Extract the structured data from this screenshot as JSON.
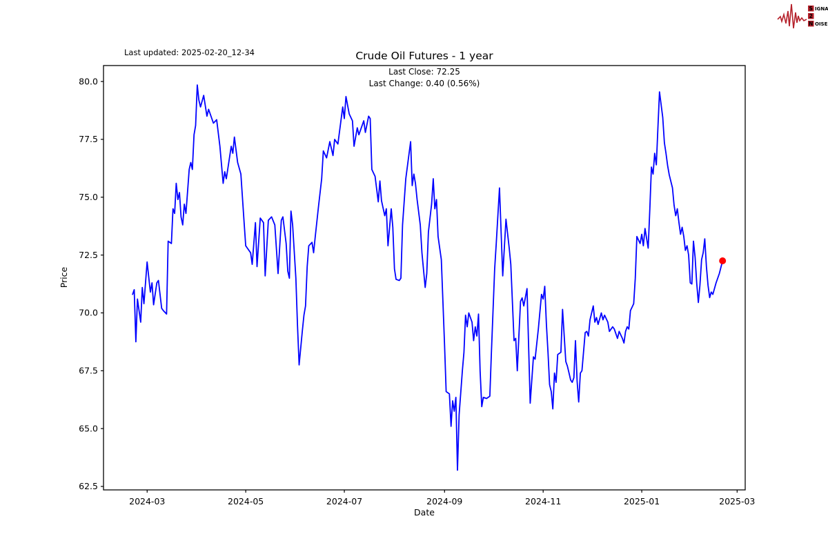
{
  "header": {
    "last_updated": "Last updated: 2025-02-20_12-34",
    "title": "Crude Oil Futures - 1 year",
    "subtitle_line1": "Last Close: 72.25",
    "subtitle_line2": "Last Change: 0.40 (0.56%)"
  },
  "logo": {
    "word1": "SIGNAL",
    "word2": "2",
    "word3": "NOISE",
    "accent_color": "#b5202a",
    "text_color": "#3b3b3b"
  },
  "chart_data": {
    "type": "line",
    "title": "Crude Oil Futures - 1 year",
    "xlabel": "Date",
    "ylabel": "Price",
    "last_close": 72.25,
    "last_change": "0.40 (0.56%)",
    "line_color": "#0000ff",
    "last_point_color": "#ff0000",
    "grid": false,
    "x_range": [
      "2024-02-03",
      "2025-03-06"
    ],
    "ylim": [
      62.35,
      80.69
    ],
    "y_ticks": [
      62.5,
      65.0,
      67.5,
      70.0,
      72.5,
      75.0,
      77.5,
      80.0
    ],
    "x_ticks": [
      {
        "date": "2024-03-01",
        "label": "2024-03"
      },
      {
        "date": "2024-05-01",
        "label": "2024-05"
      },
      {
        "date": "2024-07-01",
        "label": "2024-07"
      },
      {
        "date": "2024-09-01",
        "label": "2024-09"
      },
      {
        "date": "2024-11-01",
        "label": "2024-11"
      },
      {
        "date": "2025-01-01",
        "label": "2025-01"
      },
      {
        "date": "2025-03-01",
        "label": "2025-03"
      }
    ],
    "points": [
      [
        "2024-02-21",
        70.8
      ],
      [
        "2024-02-22",
        71.0
      ],
      [
        "2024-02-23",
        68.75
      ],
      [
        "2024-02-24",
        70.6
      ],
      [
        "2024-02-26",
        69.6
      ],
      [
        "2024-02-27",
        71.1
      ],
      [
        "2024-02-28",
        70.4
      ],
      [
        "2024-03-01",
        72.2
      ],
      [
        "2024-03-03",
        70.9
      ],
      [
        "2024-03-04",
        71.3
      ],
      [
        "2024-03-05",
        70.35
      ],
      [
        "2024-03-07",
        71.3
      ],
      [
        "2024-03-08",
        71.4
      ],
      [
        "2024-03-10",
        70.2
      ],
      [
        "2024-03-11",
        70.1
      ],
      [
        "2024-03-13",
        69.95
      ],
      [
        "2024-03-14",
        73.1
      ],
      [
        "2024-03-16",
        73.0
      ],
      [
        "2024-03-17",
        74.5
      ],
      [
        "2024-03-18",
        74.3
      ],
      [
        "2024-03-19",
        75.6
      ],
      [
        "2024-03-20",
        74.9
      ],
      [
        "2024-03-21",
        75.2
      ],
      [
        "2024-03-22",
        74.15
      ],
      [
        "2024-03-23",
        73.8
      ],
      [
        "2024-03-24",
        74.7
      ],
      [
        "2024-03-25",
        74.3
      ],
      [
        "2024-03-27",
        76.2
      ],
      [
        "2024-03-28",
        76.5
      ],
      [
        "2024-03-29",
        76.2
      ],
      [
        "2024-03-30",
        77.7
      ],
      [
        "2024-03-31",
        78.1
      ],
      [
        "2024-04-01",
        79.85
      ],
      [
        "2024-04-02",
        79.2
      ],
      [
        "2024-04-03",
        78.9
      ],
      [
        "2024-04-05",
        79.4
      ],
      [
        "2024-04-07",
        78.5
      ],
      [
        "2024-04-08",
        78.8
      ],
      [
        "2024-04-11",
        78.2
      ],
      [
        "2024-04-13",
        78.35
      ],
      [
        "2024-04-15",
        77.2
      ],
      [
        "2024-04-17",
        75.6
      ],
      [
        "2024-04-18",
        76.1
      ],
      [
        "2024-04-19",
        75.8
      ],
      [
        "2024-04-22",
        77.2
      ],
      [
        "2024-04-23",
        76.9
      ],
      [
        "2024-04-24",
        77.6
      ],
      [
        "2024-04-26",
        76.5
      ],
      [
        "2024-04-28",
        76.0
      ],
      [
        "2024-04-30",
        73.9
      ],
      [
        "2024-05-01",
        72.9
      ],
      [
        "2024-05-02",
        72.8
      ],
      [
        "2024-05-04",
        72.6
      ],
      [
        "2024-05-05",
        72.1
      ],
      [
        "2024-05-07",
        73.9
      ],
      [
        "2024-05-08",
        72.0
      ],
      [
        "2024-05-10",
        74.1
      ],
      [
        "2024-05-12",
        73.9
      ],
      [
        "2024-05-13",
        71.6
      ],
      [
        "2024-05-15",
        74.0
      ],
      [
        "2024-05-17",
        74.15
      ],
      [
        "2024-05-19",
        73.8
      ],
      [
        "2024-05-21",
        71.7
      ],
      [
        "2024-05-23",
        74.0
      ],
      [
        "2024-05-24",
        74.15
      ],
      [
        "2024-05-26",
        73.0
      ],
      [
        "2024-05-27",
        71.8
      ],
      [
        "2024-05-28",
        71.5
      ],
      [
        "2024-05-29",
        74.4
      ],
      [
        "2024-05-30",
        73.8
      ],
      [
        "2024-06-01",
        71.5
      ],
      [
        "2024-06-02",
        69.5
      ],
      [
        "2024-06-03",
        67.75
      ],
      [
        "2024-06-05",
        69.2
      ],
      [
        "2024-06-06",
        69.9
      ],
      [
        "2024-06-07",
        70.3
      ],
      [
        "2024-06-08",
        72.0
      ],
      [
        "2024-06-09",
        72.9
      ],
      [
        "2024-06-11",
        73.05
      ],
      [
        "2024-06-12",
        72.6
      ],
      [
        "2024-06-13",
        73.3
      ],
      [
        "2024-06-15",
        74.6
      ],
      [
        "2024-06-17",
        75.8
      ],
      [
        "2024-06-18",
        77.0
      ],
      [
        "2024-06-20",
        76.7
      ],
      [
        "2024-06-22",
        77.4
      ],
      [
        "2024-06-24",
        76.8
      ],
      [
        "2024-06-25",
        77.5
      ],
      [
        "2024-06-27",
        77.3
      ],
      [
        "2024-06-30",
        78.9
      ],
      [
        "2024-07-01",
        78.4
      ],
      [
        "2024-07-02",
        79.35
      ],
      [
        "2024-07-04",
        78.6
      ],
      [
        "2024-07-06",
        78.3
      ],
      [
        "2024-07-07",
        77.2
      ],
      [
        "2024-07-09",
        78.0
      ],
      [
        "2024-07-10",
        77.7
      ],
      [
        "2024-07-13",
        78.3
      ],
      [
        "2024-07-14",
        77.8
      ],
      [
        "2024-07-16",
        78.5
      ],
      [
        "2024-07-17",
        78.4
      ],
      [
        "2024-07-18",
        76.2
      ],
      [
        "2024-07-20",
        75.9
      ],
      [
        "2024-07-22",
        74.8
      ],
      [
        "2024-07-23",
        75.7
      ],
      [
        "2024-07-24",
        74.85
      ],
      [
        "2024-07-26",
        74.2
      ],
      [
        "2024-07-27",
        74.5
      ],
      [
        "2024-07-28",
        72.9
      ],
      [
        "2024-07-30",
        74.5
      ],
      [
        "2024-07-31",
        73.7
      ],
      [
        "2024-08-01",
        71.9
      ],
      [
        "2024-08-02",
        71.45
      ],
      [
        "2024-08-04",
        71.4
      ],
      [
        "2024-08-05",
        71.5
      ],
      [
        "2024-08-06",
        73.8
      ],
      [
        "2024-08-08",
        75.8
      ],
      [
        "2024-08-11",
        77.4
      ],
      [
        "2024-08-12",
        75.5
      ],
      [
        "2024-08-13",
        76.0
      ],
      [
        "2024-08-14",
        75.6
      ],
      [
        "2024-08-15",
        74.9
      ],
      [
        "2024-08-17",
        73.8
      ],
      [
        "2024-08-18",
        72.6
      ],
      [
        "2024-08-20",
        71.1
      ],
      [
        "2024-08-21",
        71.7
      ],
      [
        "2024-08-22",
        73.5
      ],
      [
        "2024-08-24",
        74.7
      ],
      [
        "2024-08-25",
        75.8
      ],
      [
        "2024-08-26",
        74.5
      ],
      [
        "2024-08-27",
        74.9
      ],
      [
        "2024-08-28",
        73.3
      ],
      [
        "2024-08-30",
        72.3
      ],
      [
        "2024-08-31",
        70.5
      ],
      [
        "2024-09-01",
        68.6
      ],
      [
        "2024-09-02",
        66.6
      ],
      [
        "2024-09-04",
        66.5
      ],
      [
        "2024-09-05",
        65.1
      ],
      [
        "2024-09-06",
        66.2
      ],
      [
        "2024-09-07",
        65.75
      ],
      [
        "2024-09-08",
        66.35
      ],
      [
        "2024-09-09",
        63.2
      ],
      [
        "2024-09-10",
        65.6
      ],
      [
        "2024-09-12",
        67.5
      ],
      [
        "2024-09-13",
        68.3
      ],
      [
        "2024-09-14",
        69.9
      ],
      [
        "2024-09-15",
        69.4
      ],
      [
        "2024-09-16",
        70.0
      ],
      [
        "2024-09-18",
        69.6
      ],
      [
        "2024-09-19",
        68.8
      ],
      [
        "2024-09-20",
        69.4
      ],
      [
        "2024-09-21",
        69.0
      ],
      [
        "2024-09-22",
        69.95
      ],
      [
        "2024-09-23",
        67.5
      ],
      [
        "2024-09-24",
        65.95
      ],
      [
        "2024-09-25",
        66.35
      ],
      [
        "2024-09-27",
        66.3
      ],
      [
        "2024-09-29",
        66.4
      ],
      [
        "2024-09-30",
        68.3
      ],
      [
        "2024-10-02",
        71.9
      ],
      [
        "2024-10-03",
        73.0
      ],
      [
        "2024-10-05",
        75.4
      ],
      [
        "2024-10-07",
        71.6
      ],
      [
        "2024-10-09",
        74.05
      ],
      [
        "2024-10-11",
        72.8
      ],
      [
        "2024-10-12",
        72.1
      ],
      [
        "2024-10-14",
        68.8
      ],
      [
        "2024-10-15",
        68.9
      ],
      [
        "2024-10-16",
        67.5
      ],
      [
        "2024-10-17",
        69.0
      ],
      [
        "2024-10-18",
        70.5
      ],
      [
        "2024-10-19",
        70.65
      ],
      [
        "2024-10-20",
        70.3
      ],
      [
        "2024-10-22",
        71.05
      ],
      [
        "2024-10-24",
        66.1
      ],
      [
        "2024-10-26",
        68.1
      ],
      [
        "2024-10-27",
        68.0
      ],
      [
        "2024-10-29",
        69.3
      ],
      [
        "2024-10-31",
        70.8
      ],
      [
        "2024-11-01",
        70.6
      ],
      [
        "2024-11-02",
        71.15
      ],
      [
        "2024-11-03",
        69.5
      ],
      [
        "2024-11-04",
        68.3
      ],
      [
        "2024-11-05",
        66.9
      ],
      [
        "2024-11-06",
        66.6
      ],
      [
        "2024-11-07",
        65.85
      ],
      [
        "2024-11-08",
        67.4
      ],
      [
        "2024-11-09",
        67.0
      ],
      [
        "2024-11-10",
        68.2
      ],
      [
        "2024-11-12",
        68.3
      ],
      [
        "2024-11-13",
        70.15
      ],
      [
        "2024-11-15",
        67.9
      ],
      [
        "2024-11-16",
        67.7
      ],
      [
        "2024-11-17",
        67.4
      ],
      [
        "2024-11-18",
        67.1
      ],
      [
        "2024-11-19",
        67.0
      ],
      [
        "2024-11-20",
        67.2
      ],
      [
        "2024-11-21",
        68.8
      ],
      [
        "2024-11-22",
        67.05
      ],
      [
        "2024-11-23",
        66.15
      ],
      [
        "2024-11-24",
        67.4
      ],
      [
        "2024-11-25",
        67.5
      ],
      [
        "2024-11-27",
        69.15
      ],
      [
        "2024-11-28",
        69.2
      ],
      [
        "2024-11-29",
        69.0
      ],
      [
        "2024-11-30",
        69.7
      ],
      [
        "2024-12-02",
        70.3
      ],
      [
        "2024-12-03",
        69.6
      ],
      [
        "2024-12-04",
        69.8
      ],
      [
        "2024-12-05",
        69.5
      ],
      [
        "2024-12-07",
        70.0
      ],
      [
        "2024-12-08",
        69.7
      ],
      [
        "2024-12-09",
        69.9
      ],
      [
        "2024-12-11",
        69.6
      ],
      [
        "2024-12-12",
        69.2
      ],
      [
        "2024-12-14",
        69.4
      ],
      [
        "2024-12-15",
        69.3
      ],
      [
        "2024-12-17",
        68.9
      ],
      [
        "2024-12-18",
        69.2
      ],
      [
        "2024-12-20",
        68.9
      ],
      [
        "2024-12-21",
        68.7
      ],
      [
        "2024-12-22",
        69.2
      ],
      [
        "2024-12-23",
        69.4
      ],
      [
        "2024-12-24",
        69.3
      ],
      [
        "2024-12-25",
        70.1
      ],
      [
        "2024-12-27",
        70.4
      ],
      [
        "2024-12-28",
        71.5
      ],
      [
        "2024-12-29",
        73.3
      ],
      [
        "2024-12-31",
        73.0
      ],
      [
        "2025-01-01",
        73.4
      ],
      [
        "2025-01-02",
        72.9
      ],
      [
        "2025-01-03",
        73.65
      ],
      [
        "2025-01-05",
        72.8
      ],
      [
        "2025-01-06",
        74.5
      ],
      [
        "2025-01-07",
        76.3
      ],
      [
        "2025-01-08",
        76.0
      ],
      [
        "2025-01-09",
        76.9
      ],
      [
        "2025-01-10",
        76.4
      ],
      [
        "2025-01-11",
        78.0
      ],
      [
        "2025-01-12",
        79.55
      ],
      [
        "2025-01-14",
        78.45
      ],
      [
        "2025-01-15",
        77.35
      ],
      [
        "2025-01-16",
        76.9
      ],
      [
        "2025-01-17",
        76.36
      ],
      [
        "2025-01-18",
        75.97
      ],
      [
        "2025-01-20",
        75.4
      ],
      [
        "2025-01-21",
        74.66
      ],
      [
        "2025-01-22",
        74.2
      ],
      [
        "2025-01-23",
        74.5
      ],
      [
        "2025-01-24",
        73.9
      ],
      [
        "2025-01-25",
        73.4
      ],
      [
        "2025-01-26",
        73.7
      ],
      [
        "2025-01-27",
        73.3
      ],
      [
        "2025-01-28",
        72.7
      ],
      [
        "2025-01-29",
        72.9
      ],
      [
        "2025-01-30",
        72.5
      ],
      [
        "2025-01-31",
        71.3
      ],
      [
        "2025-02-01",
        71.25
      ],
      [
        "2025-02-02",
        73.1
      ],
      [
        "2025-02-03",
        72.4
      ],
      [
        "2025-02-04",
        71.3
      ],
      [
        "2025-02-05",
        70.45
      ],
      [
        "2025-02-06",
        71.2
      ],
      [
        "2025-02-07",
        72.3
      ],
      [
        "2025-02-08",
        72.6
      ],
      [
        "2025-02-09",
        73.2
      ],
      [
        "2025-02-10",
        72.0
      ],
      [
        "2025-02-11",
        71.2
      ],
      [
        "2025-02-12",
        70.66
      ],
      [
        "2025-02-13",
        70.9
      ],
      [
        "2025-02-14",
        70.8
      ],
      [
        "2025-02-16",
        71.3
      ],
      [
        "2025-02-18",
        71.7
      ],
      [
        "2025-02-20",
        72.25
      ]
    ]
  }
}
